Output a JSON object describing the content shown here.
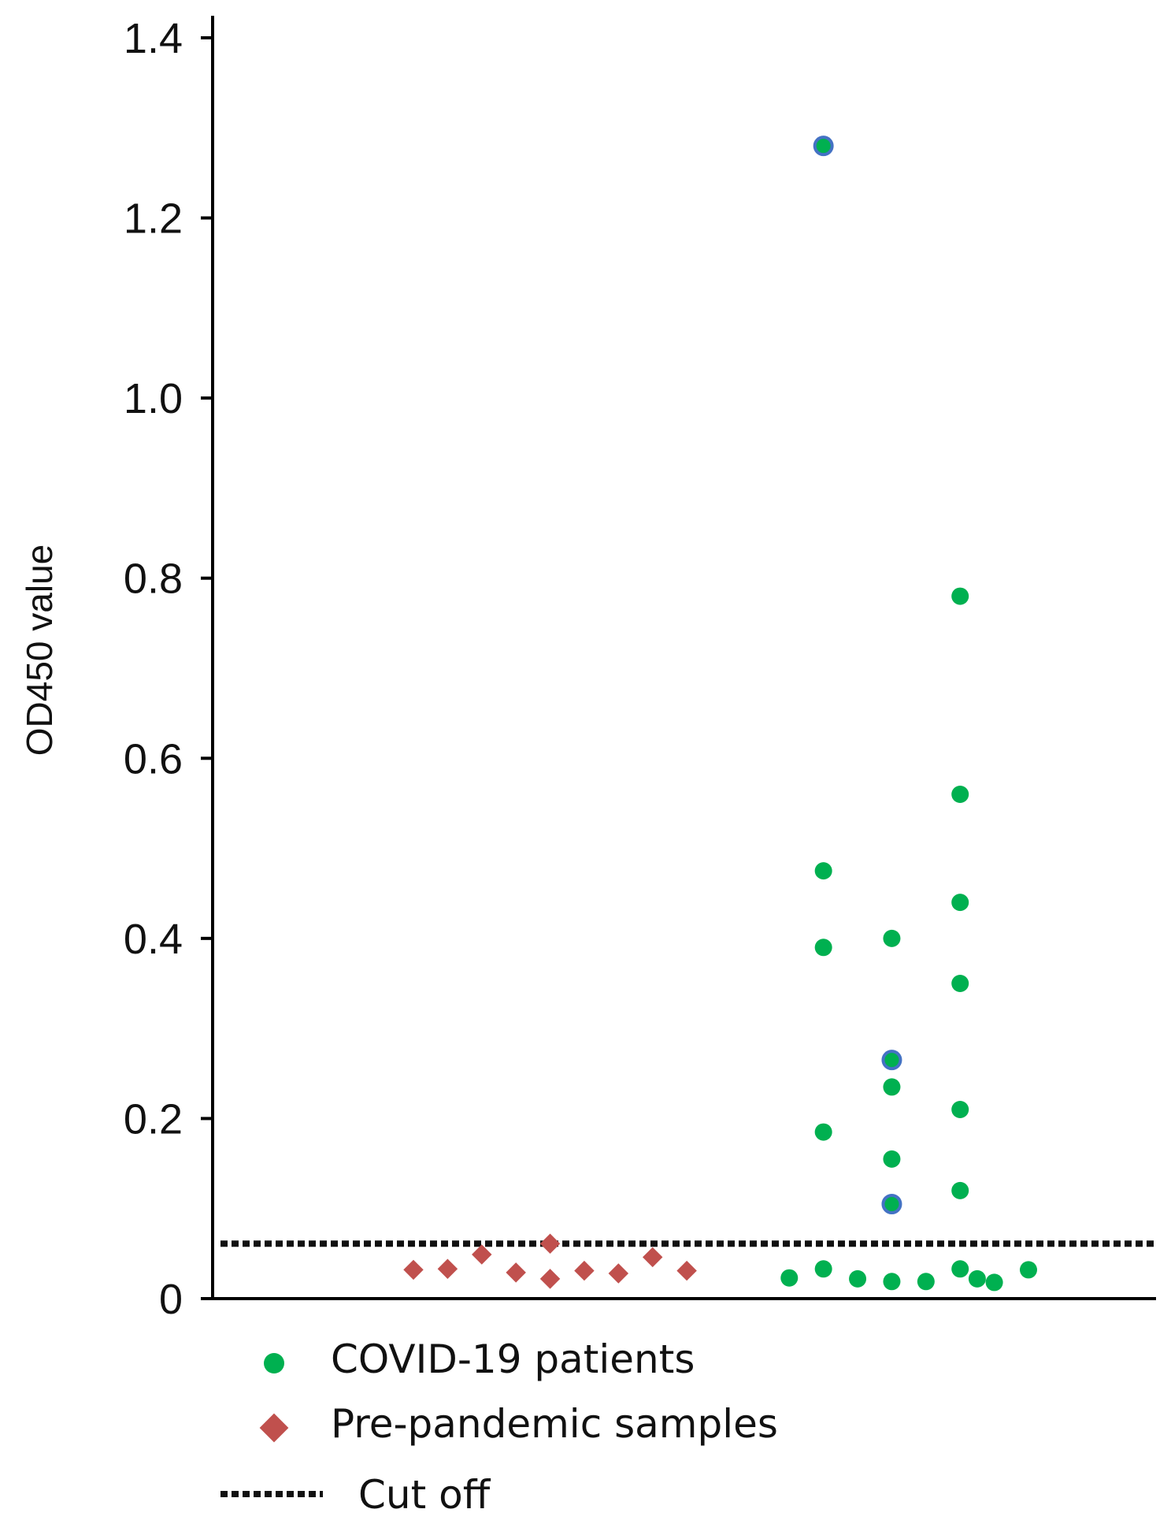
{
  "chart_data": {
    "type": "scatter",
    "title": "",
    "xlabel": "",
    "ylabel": "OD450 value",
    "ylim": [
      0,
      1.4
    ],
    "yticks": [
      {
        "value": 0,
        "label": "0"
      },
      {
        "value": 0.2,
        "label": "0.2"
      },
      {
        "value": 0.4,
        "label": "0.4"
      },
      {
        "value": 0.6,
        "label": "0.6"
      },
      {
        "value": 0.8,
        "label": "0.8"
      },
      {
        "value": 1.0,
        "label": "1.0"
      },
      {
        "value": 1.2,
        "label": "1.2"
      },
      {
        "value": 1.4,
        "label": "1.4"
      }
    ],
    "grid": false,
    "legend_position": "bottom-left",
    "cutoff": {
      "name": "Cut off",
      "value": 0.061,
      "color": "#111111"
    },
    "series": [
      {
        "name": "Pre-pandemic samples",
        "marker": "diamond",
        "color": "#C0504D",
        "points": [
          {
            "x": 1,
            "y": 0.032
          },
          {
            "x": 2,
            "y": 0.033
          },
          {
            "x": 3,
            "y": 0.049
          },
          {
            "x": 4,
            "y": 0.029
          },
          {
            "x": 5,
            "y": 0.061
          },
          {
            "x": 5,
            "y": 0.022
          },
          {
            "x": 6,
            "y": 0.031
          },
          {
            "x": 7,
            "y": 0.028
          },
          {
            "x": 8,
            "y": 0.046
          },
          {
            "x": 9,
            "y": 0.031
          }
        ]
      },
      {
        "name": "COVID-19 patients",
        "marker": "circle",
        "color": "#00B050",
        "highlight_color": "#4472C4",
        "points": [
          {
            "x": 12,
            "y": 0.023
          },
          {
            "x": 13,
            "y": 0.033
          },
          {
            "x": 14,
            "y": 0.022
          },
          {
            "x": 15,
            "y": 0.019
          },
          {
            "x": 16,
            "y": 0.019
          },
          {
            "x": 17,
            "y": 0.033
          },
          {
            "x": 17.5,
            "y": 0.022
          },
          {
            "x": 18,
            "y": 0.018
          },
          {
            "x": 19,
            "y": 0.032
          },
          {
            "x": 13,
            "y": 0.185
          },
          {
            "x": 13,
            "y": 0.39
          },
          {
            "x": 13,
            "y": 0.475
          },
          {
            "x": 13,
            "y": 1.28,
            "highlight": true
          },
          {
            "x": 15,
            "y": 0.105,
            "highlight": true
          },
          {
            "x": 15,
            "y": 0.155
          },
          {
            "x": 15,
            "y": 0.235
          },
          {
            "x": 15,
            "y": 0.265,
            "highlight": true
          },
          {
            "x": 15,
            "y": 0.4
          },
          {
            "x": 17,
            "y": 0.12
          },
          {
            "x": 17,
            "y": 0.21
          },
          {
            "x": 17,
            "y": 0.35
          },
          {
            "x": 17,
            "y": 0.44
          },
          {
            "x": 17,
            "y": 0.56
          },
          {
            "x": 17,
            "y": 0.78
          }
        ]
      }
    ]
  }
}
